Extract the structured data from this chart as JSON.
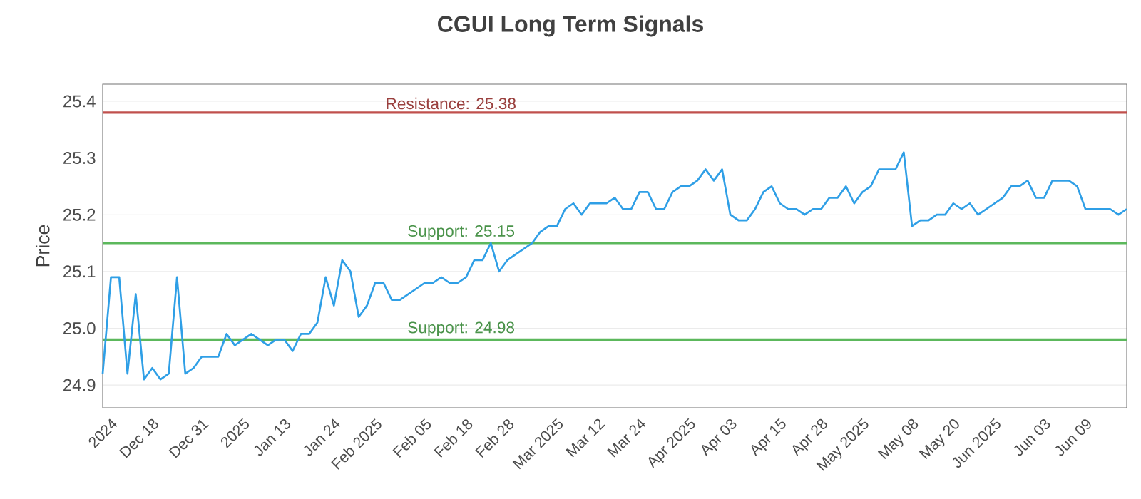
{
  "chart_data": {
    "type": "line",
    "title": "CGUI Long Term Signals",
    "ylabel": "Price",
    "categories": [
      null,
      "2024",
      null,
      null,
      null,
      null,
      "Dec 18",
      null,
      null,
      null,
      null,
      null,
      "Dec 31",
      null,
      null,
      null,
      null,
      "2025",
      null,
      null,
      null,
      null,
      "Jan 13",
      null,
      null,
      null,
      null,
      null,
      "Jan 24",
      null,
      null,
      null,
      null,
      "Feb 2025",
      null,
      null,
      null,
      null,
      null,
      "Feb 05",
      null,
      null,
      null,
      null,
      "Feb 18",
      null,
      null,
      null,
      null,
      "Feb 28",
      null,
      null,
      null,
      null,
      null,
      "Mar 2025",
      null,
      null,
      null,
      null,
      "Mar 12",
      null,
      null,
      null,
      null,
      "Mar 24",
      null,
      null,
      null,
      null,
      null,
      "Apr 2025",
      null,
      null,
      null,
      null,
      "Apr 03",
      null,
      null,
      null,
      null,
      null,
      "Apr 15",
      null,
      null,
      null,
      null,
      "Apr 28",
      null,
      null,
      null,
      null,
      "May 2025",
      null,
      null,
      null,
      null,
      null,
      "May 08",
      null,
      null,
      null,
      null,
      "May 20",
      null,
      null,
      null,
      null,
      "Jun 2025",
      null,
      null,
      null,
      null,
      null,
      "Jun 03",
      null,
      null,
      null,
      null,
      "Jun 09",
      null,
      null,
      null,
      null,
      null
    ],
    "series": [
      {
        "color": "#2f9fe6",
        "values": [
          24.92,
          25.09,
          25.09,
          24.92,
          25.06,
          24.91,
          24.93,
          24.91,
          24.92,
          25.09,
          24.92,
          24.93,
          24.95,
          24.95,
          24.95,
          24.99,
          24.97,
          24.98,
          24.99,
          24.98,
          24.97,
          24.98,
          24.98,
          24.96,
          24.99,
          24.99,
          25.01,
          25.09,
          25.04,
          25.12,
          25.1,
          25.02,
          25.04,
          25.08,
          25.08,
          25.05,
          25.05,
          25.06,
          25.07,
          25.08,
          25.08,
          25.09,
          25.08,
          25.08,
          25.09,
          25.12,
          25.12,
          25.15,
          25.1,
          25.12,
          25.13,
          25.14,
          25.15,
          25.17,
          25.18,
          25.18,
          25.21,
          25.22,
          25.2,
          25.22,
          25.22,
          25.22,
          25.23,
          25.21,
          25.21,
          25.24,
          25.24,
          25.21,
          25.21,
          25.24,
          25.25,
          25.25,
          25.26,
          25.28,
          25.26,
          25.28,
          25.2,
          25.19,
          25.19,
          25.21,
          25.24,
          25.25,
          25.22,
          25.21,
          25.21,
          25.2,
          25.21,
          25.21,
          25.23,
          25.23,
          25.25,
          25.22,
          25.24,
          25.25,
          25.28,
          25.28,
          25.28,
          25.31,
          25.18,
          25.19,
          25.19,
          25.2,
          25.2,
          25.22,
          25.21,
          25.22,
          25.2,
          25.21,
          25.22,
          25.23,
          25.25,
          25.25,
          25.26,
          25.23,
          25.23,
          25.26,
          25.26,
          25.26,
          25.25,
          25.21,
          25.21,
          25.21,
          25.21,
          25.2,
          25.21
        ]
      }
    ],
    "ylim": [
      24.86,
      25.43
    ],
    "yticks": [
      24.9,
      {
        "value": 25.0,
        "label": "25.0"
      },
      25.1,
      25.2,
      25.3,
      25.4
    ],
    "grid": "y",
    "legend": false,
    "marker": "none",
    "line_style": "solid",
    "ref_lines": [
      {
        "axis": "y",
        "value": 25.38,
        "label": "Resistance: 25.38",
        "color": "#c0504d"
      },
      {
        "axis": "y",
        "value": 25.15,
        "label": "Support: 25.15",
        "color": "#5cb85c"
      },
      {
        "axis": "y",
        "value": 24.98,
        "label": "Support: 24.98",
        "color": "#5cb85c"
      }
    ]
  }
}
